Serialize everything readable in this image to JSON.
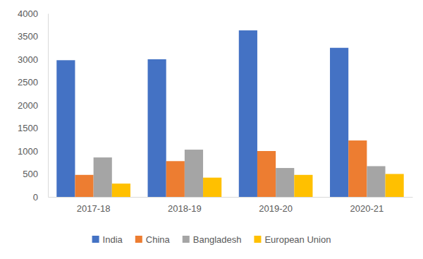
{
  "chart_data": {
    "type": "bar",
    "categories": [
      "2017-18",
      "2018-19",
      "2019-20",
      "2020-21"
    ],
    "series": [
      {
        "name": "India",
        "color": "#4472c4",
        "values": [
          2980,
          3000,
          3630,
          3250
        ]
      },
      {
        "name": "China",
        "color": "#ed7d31",
        "values": [
          480,
          780,
          1000,
          1230
        ]
      },
      {
        "name": "Bangladesh",
        "color": "#a5a5a5",
        "values": [
          860,
          1030,
          630,
          670
        ]
      },
      {
        "name": "European Union",
        "color": "#ffc000",
        "values": [
          290,
          420,
          480,
          500
        ]
      }
    ],
    "ylim": [
      0,
      4000
    ],
    "yticks": [
      0,
      500,
      1000,
      1500,
      2000,
      2500,
      3000,
      3500,
      4000
    ],
    "grid": false,
    "legend": "bottom"
  }
}
